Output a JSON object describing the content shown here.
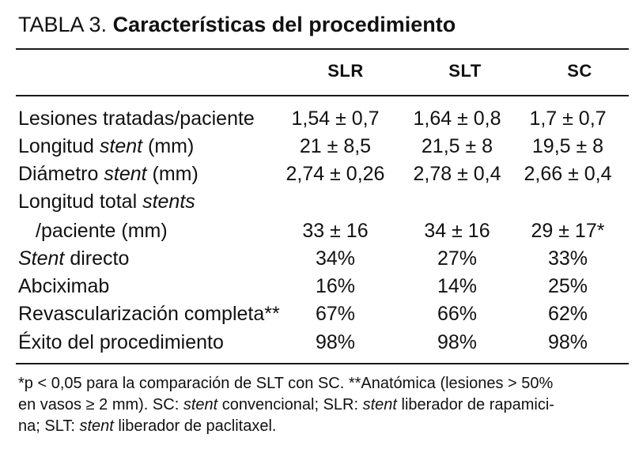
{
  "title": {
    "prefix": "TABLA 3.",
    "main": "Características del procedimiento"
  },
  "table": {
    "columns": [
      "SLR",
      "SLT",
      "SC"
    ],
    "rows": [
      {
        "label_parts": [
          {
            "t": "Lesiones tratadas/paciente",
            "i": false
          }
        ],
        "values": [
          "1,54 ± 0,7",
          "1,64 ± 0,8",
          "1,7 ± 0,7"
        ]
      },
      {
        "label_parts": [
          {
            "t": "Longitud ",
            "i": false
          },
          {
            "t": "stent",
            "i": true
          },
          {
            "t": " (mm)",
            "i": false
          }
        ],
        "values": [
          "21 ± 8,5",
          "21,5 ± 8",
          "19,5 ± 8"
        ]
      },
      {
        "label_parts": [
          {
            "t": "Diámetro ",
            "i": false
          },
          {
            "t": "stent",
            "i": true
          },
          {
            "t": " (mm)",
            "i": false
          }
        ],
        "values": [
          "2,74 ± 0,26",
          "2,78 ± 0,4",
          "2,66 ± 0,4"
        ]
      },
      {
        "label_parts": [
          {
            "t": "Longitud total ",
            "i": false
          },
          {
            "t": "stents",
            "i": true
          }
        ],
        "values": [
          "",
          "",
          ""
        ]
      },
      {
        "label_parts": [
          {
            "t": "/paciente (mm)",
            "i": false
          }
        ],
        "indent": true,
        "values": [
          "33 ± 16",
          "34 ± 16",
          "29 ± 17*"
        ]
      },
      {
        "label_parts": [
          {
            "t": "Stent",
            "i": true
          },
          {
            "t": " directo",
            "i": false
          }
        ],
        "values": [
          "34%",
          "27%",
          "33%"
        ]
      },
      {
        "label_parts": [
          {
            "t": "Abciximab",
            "i": false
          }
        ],
        "values": [
          "16%",
          "14%",
          "25%"
        ]
      },
      {
        "label_parts": [
          {
            "t": "Revascularización completa**",
            "i": false
          }
        ],
        "values": [
          "67%",
          "66%",
          "62%"
        ]
      },
      {
        "label_parts": [
          {
            "t": "Éxito del procedimiento",
            "i": false
          }
        ],
        "values": [
          "98%",
          "98%",
          "98%"
        ]
      }
    ]
  },
  "footnote": {
    "lines": [
      [
        {
          "t": "*p < 0,05 para la comparación de SLT con SC. **Anatómica (lesiones > 50%",
          "i": false
        }
      ],
      [
        {
          "t": "en vasos ≥ 2 mm). SC: ",
          "i": false
        },
        {
          "t": "stent",
          "i": true
        },
        {
          "t": " convencional; SLR: ",
          "i": false
        },
        {
          "t": "stent",
          "i": true
        },
        {
          "t": " liberador de rapamici-",
          "i": false
        }
      ],
      [
        {
          "t": "na; SLT: ",
          "i": false
        },
        {
          "t": "stent",
          "i": true
        },
        {
          "t": " liberador de paclitaxel.",
          "i": false
        }
      ]
    ]
  }
}
